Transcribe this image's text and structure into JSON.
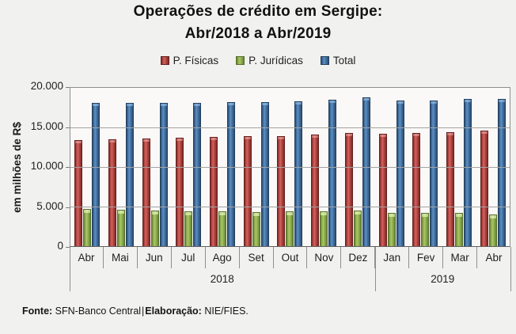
{
  "title": {
    "line1": "Operações de crédito em Sergipe:",
    "line2": "Abr/2018 a Abr/2019"
  },
  "y_axis": {
    "title": "em milhões de R$",
    "ticks": [
      "20.000",
      "15.000",
      "10.000",
      "5.000",
      "0"
    ]
  },
  "footer": {
    "source_label": "Fonte:",
    "source_value": "SFN-Banco Central",
    "divider": "|",
    "elaboration_label": "Elaboração:",
    "elaboration_value": "NIE/FIES."
  },
  "chart_data": {
    "type": "bar",
    "title": "Operações de crédito em Sergipe: Abr/2018 a Abr/2019",
    "ylabel": "em milhões de R$",
    "ylim": [
      0,
      20000
    ],
    "ytick_step": 5000,
    "grid": true,
    "legend_position": "top",
    "categories": [
      "Abr",
      "Mai",
      "Jun",
      "Jul",
      "Ago",
      "Set",
      "Out",
      "Nov",
      "Dez",
      "Jan",
      "Fev",
      "Mar",
      "Abr"
    ],
    "year_groups": [
      {
        "label": "2018",
        "months": 9
      },
      {
        "label": "2019",
        "months": 4
      }
    ],
    "series": [
      {
        "name": "P. Físicas",
        "color": "#be4a47",
        "values": [
          13400,
          13500,
          13600,
          13700,
          13800,
          13850,
          13900,
          14050,
          14300,
          14150,
          14250,
          14350,
          14550
        ]
      },
      {
        "name": "P. Jurídicas",
        "color": "#9bbb59",
        "values": [
          4700,
          4600,
          4500,
          4350,
          4350,
          4300,
          4350,
          4400,
          4500,
          4200,
          4150,
          4200,
          4000
        ]
      },
      {
        "name": "Total",
        "color": "#4f81bd",
        "values": [
          18100,
          18100,
          18100,
          18050,
          18150,
          18150,
          18250,
          18450,
          18800,
          18350,
          18400,
          18550,
          18550
        ]
      }
    ]
  }
}
